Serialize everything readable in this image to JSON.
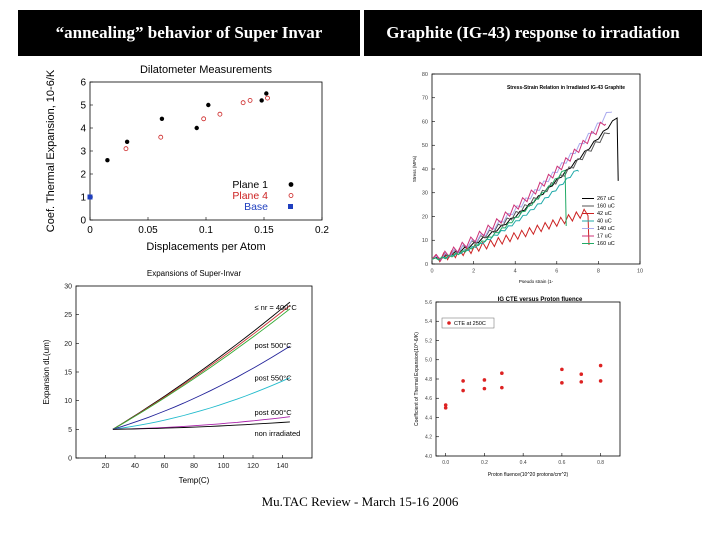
{
  "slide": {
    "title_left": "“annealing” behavior of Super Invar",
    "title_right": "Graphite (IG-43) response to irradiation",
    "footer": "Mu.TAC Review - March 15-16 2006"
  },
  "colors": {
    "title_bg": "#000000",
    "title_fg": "#ffffff"
  },
  "chart_data": [
    {
      "id": "dilatometer",
      "type": "scatter",
      "title": "Dilatometer Measurements",
      "xlabel": "Displacements per Atom",
      "ylabel": "Coef. Thermal Expansion, 10-6/K",
      "xlim": [
        0,
        0.2
      ],
      "ylim": [
        0,
        6
      ],
      "xticks": [
        0,
        0.05,
        0.1,
        0.15,
        0.2
      ],
      "xtick_labels": [
        "0",
        "0.05",
        "0.1",
        "0.15",
        "0.2"
      ],
      "yticks": [
        0,
        1,
        2,
        3,
        4,
        5,
        6
      ],
      "ytick_labels": [
        "0",
        "1",
        "2",
        "3",
        "4",
        "5",
        "6"
      ],
      "legend_position": "lower-right",
      "series": [
        {
          "name": "Plane 1",
          "color": "#000000",
          "marker": "dot",
          "points": [
            [
              0.015,
              2.6
            ],
            [
              0.032,
              3.4
            ],
            [
              0.062,
              4.4
            ],
            [
              0.092,
              4.0
            ],
            [
              0.102,
              5.0
            ],
            [
              0.148,
              5.2
            ],
            [
              0.152,
              5.5
            ]
          ]
        },
        {
          "name": "Plane 4",
          "color": "#cc2222",
          "marker": "dot",
          "points": [
            [
              0.031,
              3.1
            ],
            [
              0.061,
              3.6
            ],
            [
              0.098,
              4.4
            ],
            [
              0.112,
              4.6
            ],
            [
              0.132,
              5.1
            ],
            [
              0.138,
              5.2
            ],
            [
              0.153,
              5.3
            ]
          ]
        },
        {
          "name": "Base",
          "color": "#1f3fbf",
          "marker": "square",
          "points": [
            [
              0.0,
              1.0
            ]
          ]
        }
      ]
    },
    {
      "id": "super-invar",
      "type": "line",
      "title": "Expansions of Super-Invar",
      "xlabel": "Temp(C)",
      "ylabel": "Expansion dL(um)",
      "xlim": [
        0,
        160
      ],
      "ylim": [
        0,
        30
      ],
      "xticks": [
        20,
        40,
        60,
        80,
        100,
        120,
        140
      ],
      "xtick_labels": [
        "20",
        "40",
        "60",
        "80",
        "100",
        "120",
        "140"
      ],
      "yticks": [
        0,
        5,
        10,
        15,
        20,
        25,
        30
      ],
      "ytick_labels": [
        "0",
        "5",
        "10",
        "15",
        "20",
        "25",
        "30"
      ],
      "annotations": [
        "≤ nr = 400°C",
        "post 500°C",
        "post 550°C",
        "post 600°C",
        "non irradiated"
      ],
      "series": [
        {
          "name": "≤ nr = 400°C (a)",
          "color": "#000000",
          "x": [
            25,
            145
          ],
          "y": [
            5,
            27.2
          ]
        },
        {
          "name": "≤ nr = 400°C (b)",
          "color": "#cc3333",
          "x": [
            25,
            145
          ],
          "y": [
            5,
            26.6
          ]
        },
        {
          "name": "≤ nr = 400°C (c)",
          "color": "#33aa33",
          "x": [
            25,
            145
          ],
          "y": [
            5,
            26.0
          ]
        },
        {
          "name": "post 500°C",
          "color": "#222299",
          "x": [
            25,
            145
          ],
          "y": [
            5,
            19.5
          ]
        },
        {
          "name": "post 550°C",
          "color": "#22bbcc",
          "x": [
            25,
            145
          ],
          "y": [
            5,
            14.0
          ]
        },
        {
          "name": "post 600°C",
          "color": "#aa22aa",
          "x": [
            25,
            145
          ],
          "y": [
            5,
            7.2
          ]
        },
        {
          "name": "non irradiated",
          "color": "#000000",
          "x": [
            25,
            145
          ],
          "y": [
            5,
            6.3
          ]
        }
      ]
    },
    {
      "id": "stress-strain",
      "type": "line",
      "title": "Stress-Strain Relation in Irradiated IG-43 Graphite",
      "xlabel": "Pseudo strain (1-",
      "ylabel": "Stress (MPa)",
      "xlim": [
        0,
        10
      ],
      "ylim": [
        0,
        80
      ],
      "xticks": [
        0,
        2,
        4,
        6,
        8,
        10
      ],
      "xtick_labels": [
        "0",
        "2",
        "4",
        "6",
        "8",
        "10"
      ],
      "yticks": [
        0,
        10,
        20,
        30,
        40,
        50,
        60,
        70,
        80
      ],
      "ytick_labels": [
        "0",
        "10",
        "20",
        "30",
        "40",
        "50",
        "60",
        "70",
        "80"
      ],
      "legend_position": "lower-right",
      "series": [
        {
          "name": "267 uC",
          "color": "#000000",
          "end": [
            8.9,
            62
          ],
          "drop_to": 35,
          "curv": 1.5
        },
        {
          "name": "160 uC",
          "color": "#555555",
          "end": [
            8.5,
            56
          ],
          "drop_to": 55,
          "curv": 1.4
        },
        {
          "name": "42 uC",
          "color": "#cc2222",
          "end": [
            7.5,
            22
          ],
          "drop_to": 8,
          "curv": 1.15
        },
        {
          "name": "40 uC",
          "color": "#22aaaa",
          "end": [
            7.0,
            40
          ],
          "drop_to": 39,
          "curv": 1.6
        },
        {
          "name": "140 uC",
          "color": "#aaaaee",
          "end": [
            8.6,
            65
          ],
          "drop_to": 64,
          "curv": 1.45
        },
        {
          "name": "17 uC",
          "color": "#cc3377",
          "end": [
            8.3,
            60
          ],
          "drop_to": 59,
          "curv": 1.35
        },
        {
          "name": "160 uC",
          "color": "#22aa66",
          "end": [
            6.4,
            40
          ],
          "drop_to": 16,
          "curv": 1.7
        }
      ]
    },
    {
      "id": "cte-fluence",
      "type": "scatter",
      "title": "IG CTE versus Proton fluence",
      "xlabel": "Proton fluence(10^20 protons/cm^2)",
      "ylabel": "Coefficient of Thermal Expansion(10^-6/K)",
      "xlim": [
        -0.05,
        0.9
      ],
      "ylim": [
        4.0,
        5.6
      ],
      "xticks": [
        0.0,
        0.2,
        0.4,
        0.6,
        0.8
      ],
      "xtick_labels": [
        "0.0",
        "0.2",
        "0.4",
        "0.6",
        "0.8"
      ],
      "yticks": [
        4.0,
        4.2,
        4.4,
        4.6,
        4.8,
        5.0,
        5.2,
        5.4,
        5.6
      ],
      "ytick_labels": [
        "4.0",
        "4.2",
        "4.4",
        "4.6",
        "4.8",
        "5.0",
        "5.2",
        "5.4",
        "5.6"
      ],
      "legend_position": "top-left",
      "series": [
        {
          "name": "CTE at 250C",
          "color": "#dd2222",
          "points": [
            [
              0.0,
              4.53
            ],
            [
              0.0,
              4.5
            ],
            [
              0.09,
              4.78
            ],
            [
              0.09,
              4.68
            ],
            [
              0.2,
              4.79
            ],
            [
              0.2,
              4.7
            ],
            [
              0.29,
              4.86
            ],
            [
              0.29,
              4.71
            ],
            [
              0.6,
              4.9
            ],
            [
              0.6,
              4.76
            ],
            [
              0.7,
              4.85
            ],
            [
              0.7,
              4.77
            ],
            [
              0.8,
              4.94
            ],
            [
              0.8,
              4.78
            ]
          ]
        }
      ]
    }
  ]
}
